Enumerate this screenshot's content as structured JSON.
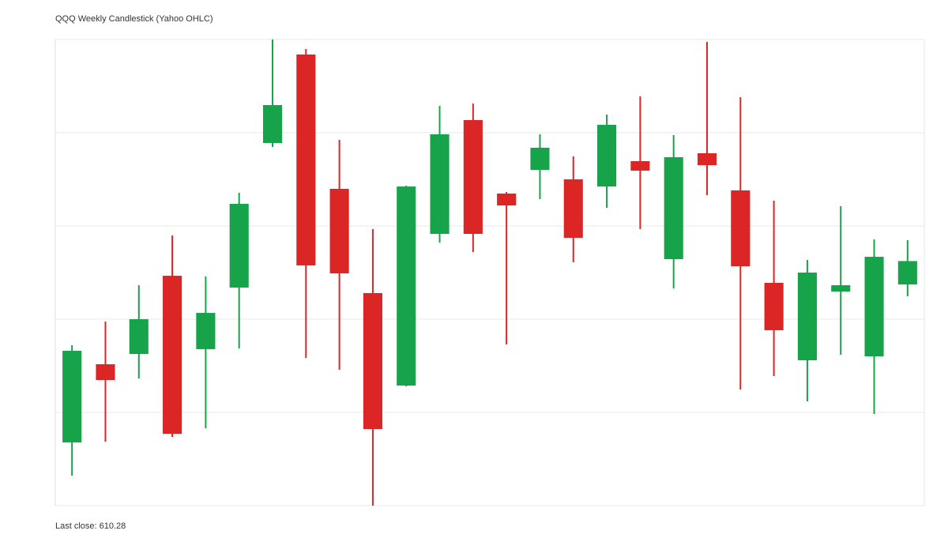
{
  "chart_data": {
    "type": "candlestick",
    "title": "QQQ Weekly Candlestick (Yahoo OHLC)",
    "open": [
      586.94,
      597.0,
      598.32,
      608.39,
      598.94,
      606.87,
      625.48,
      636.87,
      619.58,
      606.16,
      594.26,
      613.78,
      628.43,
      618.97,
      622.02,
      620.8,
      619.88,
      623.14,
      610.53,
      624.16,
      619.38,
      607.48,
      597.51,
      606.36,
      598.02,
      607.27
    ],
    "high": [
      599.44,
      602.49,
      607.17,
      613.58,
      608.29,
      619.07,
      638.8,
      637.58,
      625.88,
      614.39,
      619.99,
      630.26,
      630.56,
      619.17,
      626.6,
      623.75,
      629.14,
      631.48,
      626.49,
      638.49,
      631.38,
      618.05,
      610.43,
      617.34,
      613.07,
      612.97
    ],
    "low": [
      582.66,
      587.04,
      595.17,
      587.65,
      588.77,
      599.04,
      624.97,
      597.82,
      596.29,
      578.8,
      594.16,
      612.66,
      611.44,
      599.55,
      618.26,
      610.12,
      617.14,
      614.39,
      606.77,
      618.77,
      593.75,
      595.48,
      592.22,
      598.22,
      590.6,
      605.75
    ],
    "close": [
      598.73,
      594.97,
      602.8,
      588.05,
      603.61,
      617.65,
      630.36,
      609.72,
      608.7,
      588.66,
      619.88,
      626.6,
      613.78,
      617.44,
      624.87,
      613.27,
      627.82,
      621.92,
      623.65,
      622.63,
      609.61,
      601.38,
      608.8,
      607.17,
      610.83,
      610.28
    ],
    "up_color": "#16a34a",
    "down_color": "#dc2626",
    "ylim": [
      578.8,
      638.8
    ],
    "yticks": [
      578.8,
      590.8,
      602.8,
      614.8,
      626.8,
      638.8
    ],
    "grid": true,
    "footer": "Last close: 610.28"
  }
}
